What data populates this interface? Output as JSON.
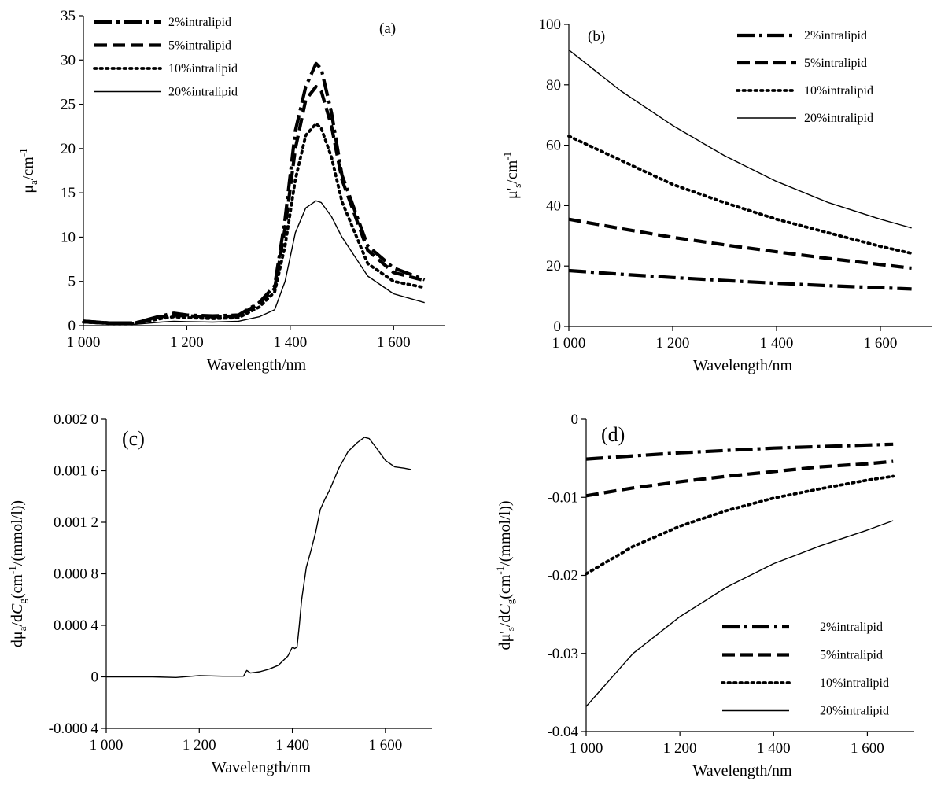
{
  "figure": {
    "panels": [
      {
        "label": "(a)"
      },
      {
        "label": "(b)"
      },
      {
        "label": "(c)"
      },
      {
        "label": "(d)"
      }
    ]
  },
  "chart_data": [
    {
      "type": "line",
      "panel": "(a)",
      "xlabel": "Wavelength/nm",
      "ylabel": "μa/cm-1",
      "xlim": [
        1000,
        1700
      ],
      "ylim": [
        0,
        35
      ],
      "x_ticks": [
        1000,
        1200,
        1400,
        1600
      ],
      "x_tick_labels": [
        "1 000",
        "1 200",
        "1 400",
        "1 600"
      ],
      "y_ticks": [
        0,
        5,
        10,
        15,
        20,
        25,
        30,
        35
      ],
      "y_tick_labels": [
        "0",
        "5",
        "10",
        "15",
        "20",
        "25",
        "30",
        "35"
      ],
      "legend_position": "top-left",
      "series": [
        {
          "name": "2%intralipid",
          "style": "dash-dot",
          "x": [
            1000,
            1050,
            1100,
            1150,
            1175,
            1200,
            1250,
            1300,
            1340,
            1370,
            1390,
            1410,
            1430,
            1450,
            1460,
            1480,
            1500,
            1550,
            1600,
            1660
          ],
          "y": [
            0.5,
            0.3,
            0.3,
            1.1,
            1.4,
            1.2,
            1.1,
            1.2,
            2.6,
            4.5,
            12,
            22,
            27,
            29.6,
            29,
            24,
            17,
            9,
            6.5,
            5.2
          ]
        },
        {
          "name": "5%intralipid",
          "style": "dash",
          "x": [
            1000,
            1050,
            1100,
            1150,
            1175,
            1200,
            1250,
            1300,
            1340,
            1370,
            1390,
            1410,
            1430,
            1450,
            1460,
            1480,
            1500,
            1550,
            1600,
            1660
          ],
          "y": [
            0.5,
            0.3,
            0.3,
            1.0,
            1.2,
            1.1,
            1.0,
            1.1,
            2.5,
            4.2,
            11,
            20,
            25.5,
            27,
            26.5,
            22.5,
            16.5,
            8.5,
            6,
            5.1
          ]
        },
        {
          "name": "10%intralipid",
          "style": "dot",
          "x": [
            1000,
            1050,
            1100,
            1150,
            1175,
            1200,
            1250,
            1300,
            1340,
            1370,
            1390,
            1410,
            1430,
            1450,
            1460,
            1480,
            1500,
            1550,
            1600,
            1660
          ],
          "y": [
            0.4,
            0.25,
            0.25,
            0.8,
            1.0,
            0.9,
            0.8,
            0.9,
            2.1,
            3.8,
            9,
            16.5,
            21.5,
            22.8,
            22.3,
            19,
            14,
            7,
            5,
            4.3
          ]
        },
        {
          "name": "20%intralipid",
          "style": "solid",
          "x": [
            1000,
            1050,
            1100,
            1150,
            1175,
            1200,
            1250,
            1300,
            1340,
            1370,
            1390,
            1410,
            1430,
            1450,
            1460,
            1480,
            1500,
            1550,
            1600,
            1660
          ],
          "y": [
            0.3,
            0.15,
            0.15,
            0.4,
            0.5,
            0.45,
            0.4,
            0.5,
            1.0,
            1.8,
            5,
            10.5,
            13.3,
            14.1,
            13.9,
            12.3,
            10,
            5.6,
            3.6,
            2.6
          ]
        }
      ]
    },
    {
      "type": "line",
      "panel": "(b)",
      "xlabel": "Wavelength/nm",
      "ylabel": "μ's/cm-1",
      "xlim": [
        1000,
        1700
      ],
      "ylim": [
        0,
        100
      ],
      "x_ticks": [
        1000,
        1200,
        1400,
        1600
      ],
      "x_tick_labels": [
        "1 000",
        "1 200",
        "1 400",
        "1 600"
      ],
      "y_ticks": [
        0,
        20,
        40,
        60,
        80,
        100
      ],
      "y_tick_labels": [
        "0",
        "20",
        "40",
        "60",
        "80",
        "100"
      ],
      "legend_position": "top-right",
      "series": [
        {
          "name": "2%intralipid",
          "style": "dash-dot",
          "x": [
            1000,
            1100,
            1200,
            1300,
            1400,
            1500,
            1600,
            1660
          ],
          "y": [
            18.5,
            17.3,
            16.2,
            15.2,
            14.3,
            13.5,
            12.8,
            12.4
          ]
        },
        {
          "name": "5%intralipid",
          "style": "dash",
          "x": [
            1000,
            1100,
            1200,
            1300,
            1400,
            1500,
            1600,
            1660
          ],
          "y": [
            35.5,
            32.4,
            29.5,
            27.0,
            24.7,
            22.5,
            20.5,
            19.3
          ]
        },
        {
          "name": "10%intralipid",
          "style": "dot",
          "x": [
            1000,
            1100,
            1200,
            1300,
            1400,
            1500,
            1600,
            1660
          ],
          "y": [
            63,
            55,
            47,
            41,
            35.5,
            31,
            26.5,
            24.2
          ]
        },
        {
          "name": "20%intralipid",
          "style": "solid",
          "x": [
            1000,
            1100,
            1200,
            1300,
            1400,
            1500,
            1600,
            1660
          ],
          "y": [
            91.5,
            78,
            66.5,
            56.5,
            48,
            41,
            35.5,
            32.6
          ]
        }
      ]
    },
    {
      "type": "line",
      "panel": "(c)",
      "xlabel": "Wavelength/nm",
      "ylabel": "dμa/dCg(cm-1/(mmol/l))",
      "xlim": [
        1000,
        1700
      ],
      "ylim": [
        -0.0004,
        0.002
      ],
      "x_ticks": [
        1000,
        1200,
        1400,
        1600
      ],
      "x_tick_labels": [
        "1 000",
        "1 200",
        "1 400",
        "1 600"
      ],
      "y_ticks": [
        -0.0004,
        0,
        0.0004,
        0.0008,
        0.0012,
        0.0016,
        0.002
      ],
      "y_tick_labels": [
        "-0.000 4",
        "0",
        "0.000 4",
        "0.000 8",
        "0.001 2",
        "0.001 6",
        "0.002 0"
      ],
      "series": [
        {
          "name": "",
          "style": "solid",
          "x": [
            1000,
            1100,
            1150,
            1200,
            1250,
            1295,
            1302,
            1310,
            1330,
            1350,
            1370,
            1390,
            1400,
            1405,
            1410,
            1415,
            1420,
            1430,
            1440,
            1450,
            1460,
            1470,
            1480,
            1500,
            1520,
            1540,
            1555,
            1565,
            1580,
            1600,
            1620,
            1640,
            1655
          ],
          "y": [
            0,
            0,
            -5e-06,
            1e-05,
            5e-06,
            5e-06,
            5e-05,
            3e-05,
            4e-05,
            6e-05,
            9e-05,
            0.00016,
            0.00023,
            0.00022,
            0.00023,
            0.0004,
            0.0006,
            0.00085,
            0.00098,
            0.00112,
            0.0013,
            0.00138,
            0.00145,
            0.00162,
            0.00175,
            0.00182,
            0.00186,
            0.00185,
            0.00178,
            0.00168,
            0.00163,
            0.00162,
            0.00161
          ]
        }
      ]
    },
    {
      "type": "line",
      "panel": "(d)",
      "xlabel": "Wavelength/nm",
      "ylabel": "dμ's/dCg(cm-1/(mmol/l))",
      "xlim": [
        1000,
        1700
      ],
      "ylim": [
        -0.04,
        0
      ],
      "x_ticks": [
        1000,
        1200,
        1400,
        1600
      ],
      "x_tick_labels": [
        "1 000",
        "1 200",
        "1 400",
        "1 600"
      ],
      "y_ticks": [
        -0.04,
        -0.03,
        -0.02,
        -0.01,
        0
      ],
      "y_tick_labels": [
        "-0.04",
        "-0.03",
        "-0.02",
        "-0.01",
        "0"
      ],
      "legend_position": "bottom-right",
      "series": [
        {
          "name": "2%intralipid",
          "style": "dash-dot",
          "x": [
            1000,
            1100,
            1200,
            1300,
            1400,
            1500,
            1600,
            1655
          ],
          "y": [
            -0.0051,
            -0.0047,
            -0.0043,
            -0.004,
            -0.0037,
            -0.0035,
            -0.0033,
            -0.0032
          ]
        },
        {
          "name": "5%intralipid",
          "style": "dash",
          "x": [
            1000,
            1100,
            1200,
            1300,
            1400,
            1500,
            1600,
            1655
          ],
          "y": [
            -0.0098,
            -0.0088,
            -0.008,
            -0.0073,
            -0.0067,
            -0.0061,
            -0.0057,
            -0.0054
          ]
        },
        {
          "name": "10%intralipid",
          "style": "dot",
          "x": [
            1000,
            1100,
            1200,
            1300,
            1400,
            1500,
            1600,
            1655
          ],
          "y": [
            -0.0198,
            -0.0163,
            -0.0137,
            -0.0117,
            -0.0101,
            -0.0089,
            -0.0078,
            -0.0073
          ]
        },
        {
          "name": "20%intralipid",
          "style": "solid",
          "x": [
            1000,
            1100,
            1200,
            1300,
            1400,
            1500,
            1600,
            1655
          ],
          "y": [
            -0.0368,
            -0.03,
            -0.0253,
            -0.0215,
            -0.0185,
            -0.0162,
            -0.0142,
            -0.013
          ]
        }
      ]
    }
  ]
}
